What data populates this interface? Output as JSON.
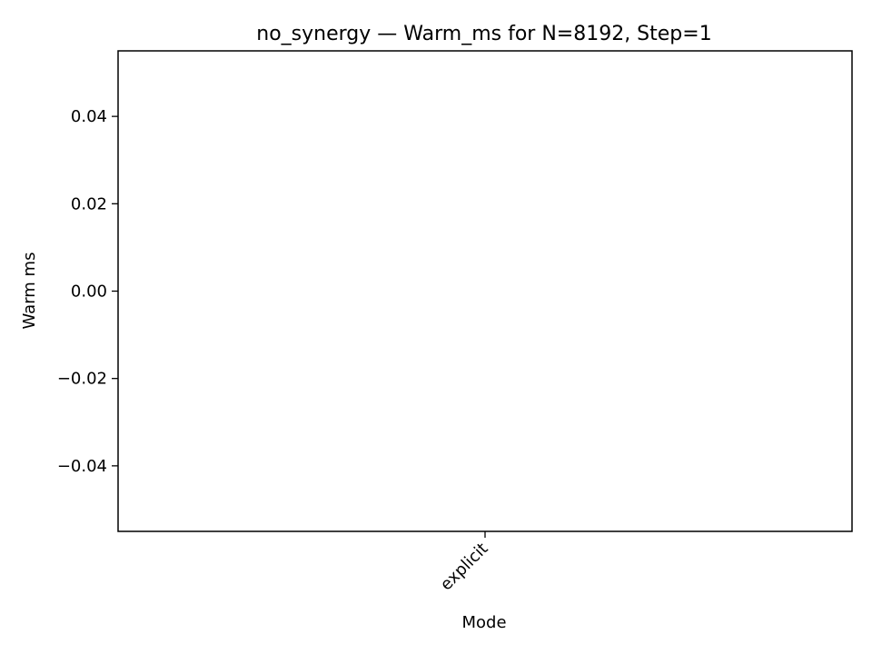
{
  "chart_data": {
    "type": "bar",
    "title": "no_synergy — Warm_ms for N=8192, Step=1",
    "xlabel": "Mode",
    "ylabel": "Warm ms",
    "categories": [
      "explicit"
    ],
    "values": [
      0
    ],
    "ylim": [
      -0.055,
      0.055
    ],
    "yticks": [
      {
        "value": 0.04,
        "label": "0.04"
      },
      {
        "value": 0.02,
        "label": "0.02"
      },
      {
        "value": 0.0,
        "label": "0.00"
      },
      {
        "value": -0.02,
        "label": "−0.02"
      },
      {
        "value": -0.04,
        "label": "−0.04"
      }
    ],
    "grid": false,
    "legend": "none"
  }
}
